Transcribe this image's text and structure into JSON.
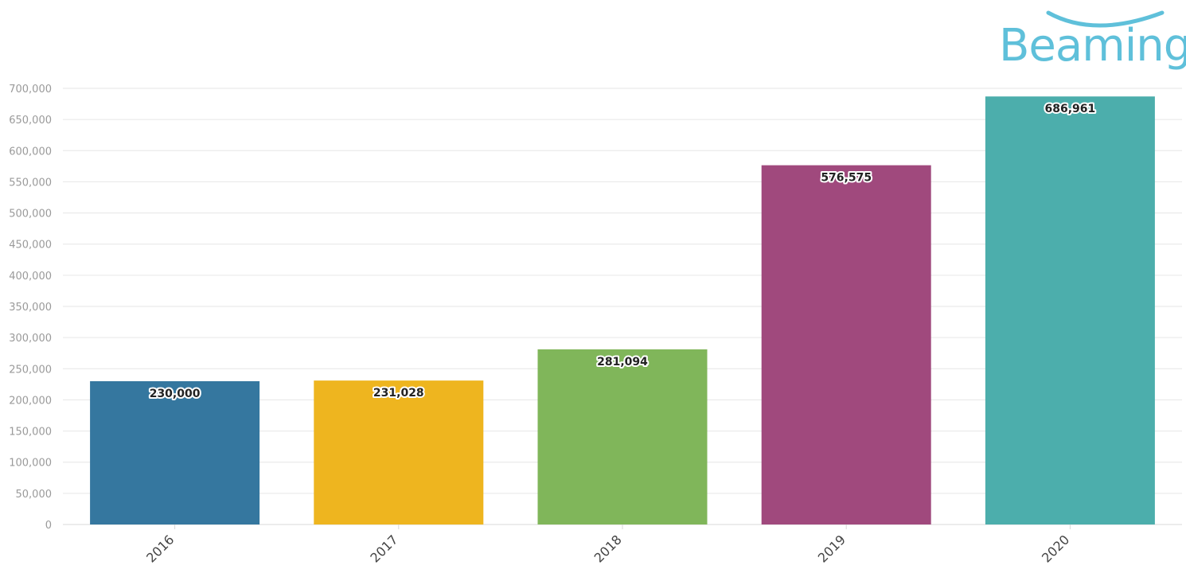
{
  "brand": {
    "name": "Beaming",
    "color": "#5fc0da"
  },
  "chart_data": {
    "type": "bar",
    "categories": [
      "2016",
      "2017",
      "2018",
      "2019",
      "2020"
    ],
    "values": [
      230000,
      231028,
      281094,
      576575,
      686961
    ],
    "data_labels": [
      "230,000",
      "231,028",
      "281,094",
      "576,575",
      "686,961"
    ],
    "colors": [
      "#35779f",
      "#eeb51f",
      "#80b65a",
      "#a0497d",
      "#4caeac"
    ],
    "ylim": [
      0,
      700000
    ],
    "yticks": [
      0,
      50000,
      100000,
      150000,
      200000,
      250000,
      300000,
      350000,
      400000,
      450000,
      500000,
      550000,
      600000,
      650000,
      700000
    ],
    "ytick_labels": [
      "0",
      "50,000",
      "100,000",
      "150,000",
      "200,000",
      "250,000",
      "300,000",
      "350,000",
      "400,000",
      "450,000",
      "500,000",
      "550,000",
      "600,000",
      "650,000",
      "700,000"
    ],
    "grid": true,
    "legend": "none"
  }
}
